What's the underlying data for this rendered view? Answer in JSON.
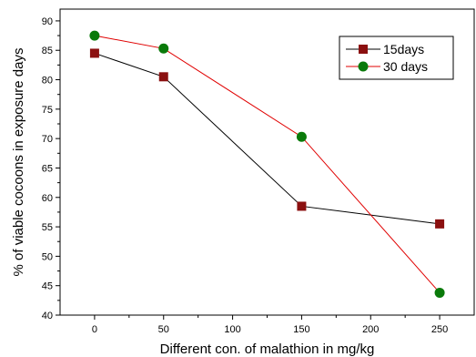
{
  "chart_data": {
    "type": "line",
    "title": "",
    "xlabel": "Different con. of malathion in mg/kg",
    "ylabel": "% of viable cocoons in exposure days",
    "xlim": [
      -25,
      275
    ],
    "ylim": [
      40,
      92
    ],
    "x_ticks": [
      0,
      50,
      100,
      150,
      200,
      250
    ],
    "y_ticks": [
      40,
      45,
      50,
      55,
      60,
      65,
      70,
      75,
      80,
      85,
      90
    ],
    "grid": false,
    "legend_position": "top-right",
    "series": [
      {
        "name": "15days",
        "color": "#000000",
        "marker_color": "#8b1010",
        "marker": "square",
        "x": [
          0,
          50,
          150,
          250
        ],
        "values": [
          84.5,
          80.5,
          58.5,
          55.5
        ]
      },
      {
        "name": "30 days",
        "color": "#e00000",
        "marker_color": "#0a7a0a",
        "marker": "circle",
        "x": [
          0,
          50,
          150,
          250
        ],
        "values": [
          87.5,
          85.3,
          70.3,
          43.8
        ]
      }
    ]
  }
}
